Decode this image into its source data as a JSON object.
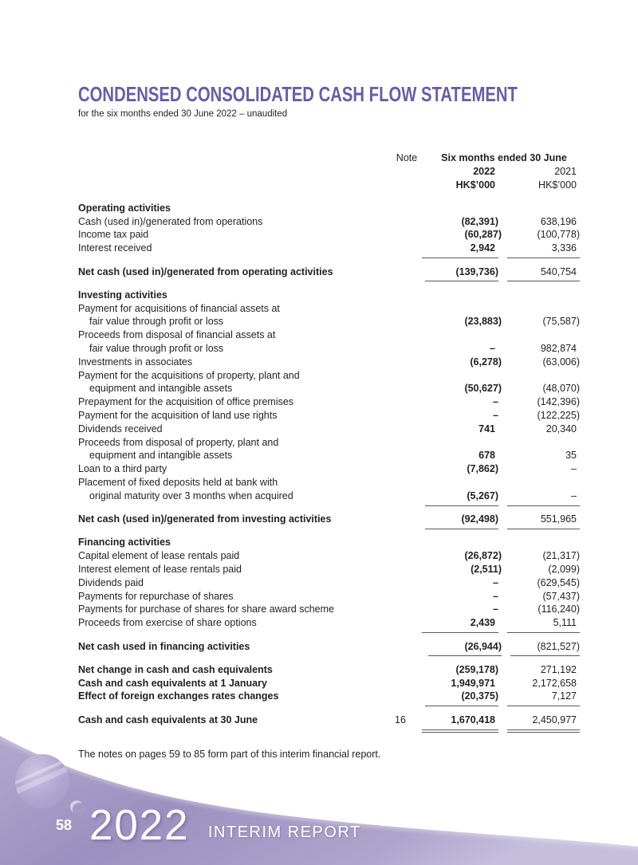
{
  "page": {
    "title": "CONDENSED CONSOLIDATED CASH FLOW STATEMENT",
    "subtitle": "for the six months ended 30 June 2022 – unaudited",
    "footnote": "The notes on pages 59 to 85 form part of this interim financial report."
  },
  "table": {
    "header": {
      "note_label": "Note",
      "period_label": "Six months ended 30 June",
      "year_2022": "2022",
      "year_2021": "2021",
      "unit_2022": "HK$’000",
      "unit_2021": "HK$’000"
    },
    "rows": [
      {
        "type": "section",
        "label": "Operating activities"
      },
      {
        "type": "item",
        "label": "Cash (used in)/generated from operations",
        "v2022": "(82,391)",
        "v2021": "638,196"
      },
      {
        "type": "item",
        "label": "Income tax paid",
        "v2022": "(60,287)",
        "v2021": "(100,778)"
      },
      {
        "type": "item",
        "label": "Interest received",
        "v2022": "2,942",
        "v2021": "3,336",
        "rule": "single"
      },
      {
        "type": "spacer"
      },
      {
        "type": "item",
        "label": "Net cash (used in)/generated from operating activities",
        "bold": true,
        "v2022": "(139,736)",
        "v2021": "540,754",
        "rule": "single"
      },
      {
        "type": "spacer"
      },
      {
        "type": "section",
        "label": "Investing activities"
      },
      {
        "type": "item",
        "label": "Payment for acquisitions of financial assets at"
      },
      {
        "type": "item",
        "label": "fair value through profit or loss",
        "indent": true,
        "v2022": "(23,883)",
        "v2021": "(75,587)"
      },
      {
        "type": "item",
        "label": "Proceeds from disposal of financial assets at"
      },
      {
        "type": "item",
        "label": "fair value through profit or loss",
        "indent": true,
        "v2022": "–",
        "v2021": "982,874"
      },
      {
        "type": "item",
        "label": "Investments in associates",
        "v2022": "(6,278)",
        "v2021": "(63,006)"
      },
      {
        "type": "item",
        "label": "Payment for the acquisitions of property, plant and"
      },
      {
        "type": "item",
        "label": "equipment and intangible assets",
        "indent": true,
        "v2022": "(50,627)",
        "v2021": "(48,070)"
      },
      {
        "type": "item",
        "label": "Prepayment for the acquisition of office premises",
        "v2022": "–",
        "v2021": "(142,396)"
      },
      {
        "type": "item",
        "label": "Payment for the acquisition of land use rights",
        "v2022": "–",
        "v2021": "(122,225)"
      },
      {
        "type": "item",
        "label": "Dividends received",
        "v2022": "741",
        "v2021": "20,340"
      },
      {
        "type": "item",
        "label": "Proceeds from disposal of property, plant and"
      },
      {
        "type": "item",
        "label": "equipment and intangible assets",
        "indent": true,
        "v2022": "678",
        "v2021": "35"
      },
      {
        "type": "item",
        "label": "Loan to a third party",
        "v2022": "(7,862)",
        "v2021": "–"
      },
      {
        "type": "item",
        "label": "Placement of fixed deposits held at bank with"
      },
      {
        "type": "item",
        "label": "original maturity over 3 months when acquired",
        "indent": true,
        "v2022": "(5,267)",
        "v2021": "–",
        "rule": "single"
      },
      {
        "type": "spacer"
      },
      {
        "type": "item",
        "label": "Net cash (used in)/generated from investing activities",
        "bold": true,
        "v2022": "(92,498)",
        "v2021": "551,965",
        "rule": "single"
      },
      {
        "type": "spacer"
      },
      {
        "type": "section",
        "label": "Financing activities"
      },
      {
        "type": "item",
        "label": "Capital element of lease rentals paid",
        "v2022": "(26,872)",
        "v2021": "(21,317)"
      },
      {
        "type": "item",
        "label": "Interest element of lease rentals paid",
        "v2022": "(2,511)",
        "v2021": "(2,099)"
      },
      {
        "type": "item",
        "label": "Dividends paid",
        "v2022": "–",
        "v2021": "(629,545)"
      },
      {
        "type": "item",
        "label": "Payments for repurchase of shares",
        "v2022": "–",
        "v2021": "(57,437)"
      },
      {
        "type": "item",
        "label": "Payments for purchase of shares for share award scheme",
        "v2022": "–",
        "v2021": "(116,240)"
      },
      {
        "type": "item",
        "label": "Proceeds from exercise of share options",
        "v2022": "2,439",
        "v2021": "5,111",
        "rule": "single"
      },
      {
        "type": "spacer"
      },
      {
        "type": "item",
        "label": "Net cash used in financing activities",
        "bold": true,
        "v2022": "(26,944)",
        "v2021": "(821,527)",
        "rule": "single"
      },
      {
        "type": "spacer"
      },
      {
        "type": "item",
        "label": "Net change in cash and cash equivalents",
        "bold": true,
        "v2022": "(259,178)",
        "v2021": "271,192"
      },
      {
        "type": "item",
        "label": "Cash and cash equivalents at 1 January",
        "bold": true,
        "v2022": "1,949,971",
        "v2021": "2,172,658"
      },
      {
        "type": "item",
        "label": "Effect of foreign exchanges rates changes",
        "bold": true,
        "v2022": "(20,375)",
        "v2021": "7,127",
        "rule": "single"
      },
      {
        "type": "spacer"
      },
      {
        "type": "item",
        "label": "Cash and cash equivalents at 30 June",
        "bold": true,
        "note": "16",
        "v2022": "1,670,418",
        "v2021": "2,450,977",
        "rule": "double"
      }
    ]
  },
  "footer": {
    "page_number": "58",
    "year_logo": "2022",
    "report_label": "INTERIM REPORT"
  },
  "colors": {
    "title_purple": "#6a5ca8",
    "rule_gray": "#58595b",
    "wave_light": "#b7aed3",
    "wave_mid": "#9c90c1",
    "wave_tail": "#c6bedd"
  }
}
